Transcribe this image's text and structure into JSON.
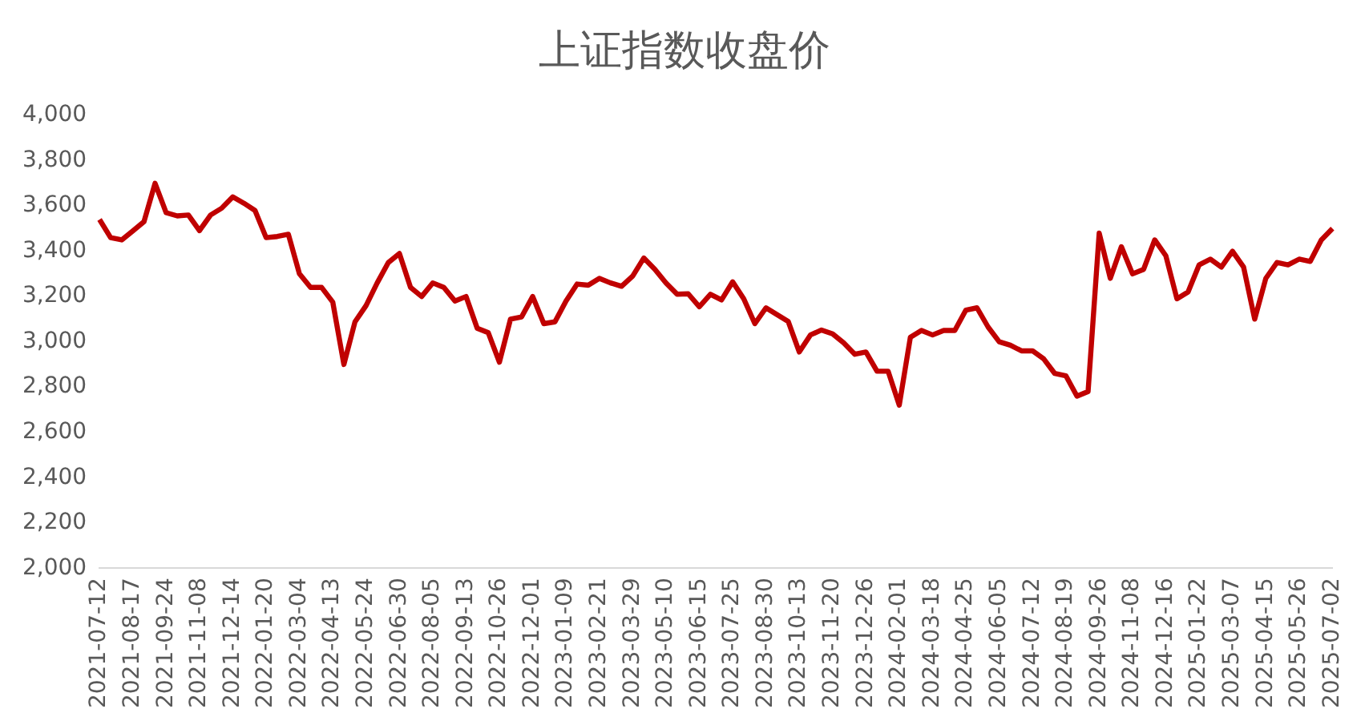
{
  "chart_data": {
    "type": "line",
    "title": "上证指数收盘价",
    "categories": [
      "2021-07-12",
      null,
      null,
      "2021-08-17",
      null,
      null,
      "2021-09-24",
      null,
      null,
      "2021-11-08",
      null,
      null,
      "2021-12-14",
      null,
      null,
      "2022-01-20",
      null,
      null,
      "2022-03-04",
      null,
      null,
      "2022-04-13",
      null,
      null,
      "2022-05-24",
      null,
      null,
      "2022-06-30",
      null,
      null,
      "2022-08-05",
      null,
      null,
      "2022-09-13",
      null,
      null,
      "2022-10-26",
      null,
      null,
      "2022-12-01",
      null,
      null,
      "2023-01-09",
      null,
      null,
      "2023-02-21",
      null,
      null,
      "2023-03-29",
      null,
      null,
      "2023-05-10",
      null,
      null,
      "2023-06-15",
      null,
      null,
      "2023-07-25",
      null,
      null,
      "2023-08-30",
      null,
      null,
      "2023-10-13",
      null,
      null,
      "2023-11-20",
      null,
      null,
      "2023-12-26",
      null,
      null,
      "2024-02-01",
      null,
      null,
      "2024-03-18",
      null,
      null,
      "2024-04-25",
      null,
      null,
      "2024-06-05",
      null,
      null,
      "2024-07-12",
      null,
      null,
      "2024-08-19",
      null,
      null,
      "2024-09-26",
      null,
      null,
      "2024-11-08",
      null,
      null,
      "2024-12-16",
      null,
      null,
      "2025-01-22",
      null,
      null,
      "2025-03-07",
      null,
      null,
      "2025-04-15",
      null,
      null,
      "2025-05-26",
      null,
      null,
      "2025-07-02"
    ],
    "series": [
      {
        "color": "#c00000",
        "values": [
          3540,
          3460,
          3450,
          3490,
          3530,
          3700,
          3570,
          3556,
          3560,
          3491,
          3560,
          3590,
          3640,
          3612,
          3580,
          3460,
          3465,
          3475,
          3300,
          3240,
          3240,
          3175,
          2900,
          3088,
          3160,
          3260,
          3350,
          3390,
          3240,
          3200,
          3260,
          3240,
          3180,
          3200,
          3060,
          3040,
          2910,
          3100,
          3110,
          3200,
          3080,
          3088,
          3180,
          3255,
          3250,
          3280,
          3260,
          3245,
          3290,
          3370,
          3320,
          3260,
          3210,
          3212,
          3155,
          3210,
          3185,
          3265,
          3190,
          3080,
          3150,
          3120,
          3090,
          2955,
          3030,
          3052,
          3035,
          2995,
          2945,
          2955,
          2870,
          2870,
          2720,
          3020,
          3050,
          3030,
          3050,
          3050,
          3140,
          3150,
          3065,
          3000,
          2985,
          2960,
          2960,
          2925,
          2860,
          2850,
          2760,
          2780,
          3480,
          3280,
          3420,
          3300,
          3320,
          3450,
          3380,
          3190,
          3220,
          3340,
          3365,
          3330,
          3400,
          3330,
          3100,
          3280,
          3350,
          3340,
          3365,
          3355,
          3450,
          3500
        ]
      }
    ],
    "ylim": [
      2000,
      4000
    ],
    "yticks": [
      {
        "value": 2000,
        "label": "2,000"
      },
      {
        "value": 2200,
        "label": "2,200"
      },
      {
        "value": 2400,
        "label": "2,400"
      },
      {
        "value": 2600,
        "label": "2,600"
      },
      {
        "value": 2800,
        "label": "2,800"
      },
      {
        "value": 3000,
        "label": "3,000"
      },
      {
        "value": 3200,
        "label": "3,200"
      },
      {
        "value": 3400,
        "label": "3,400"
      },
      {
        "value": 3600,
        "label": "3,600"
      },
      {
        "value": 3800,
        "label": "3,800"
      },
      {
        "value": 4000,
        "label": "4,000"
      }
    ],
    "grid": false,
    "legend": false,
    "marker": "none",
    "line_style": "solid"
  }
}
